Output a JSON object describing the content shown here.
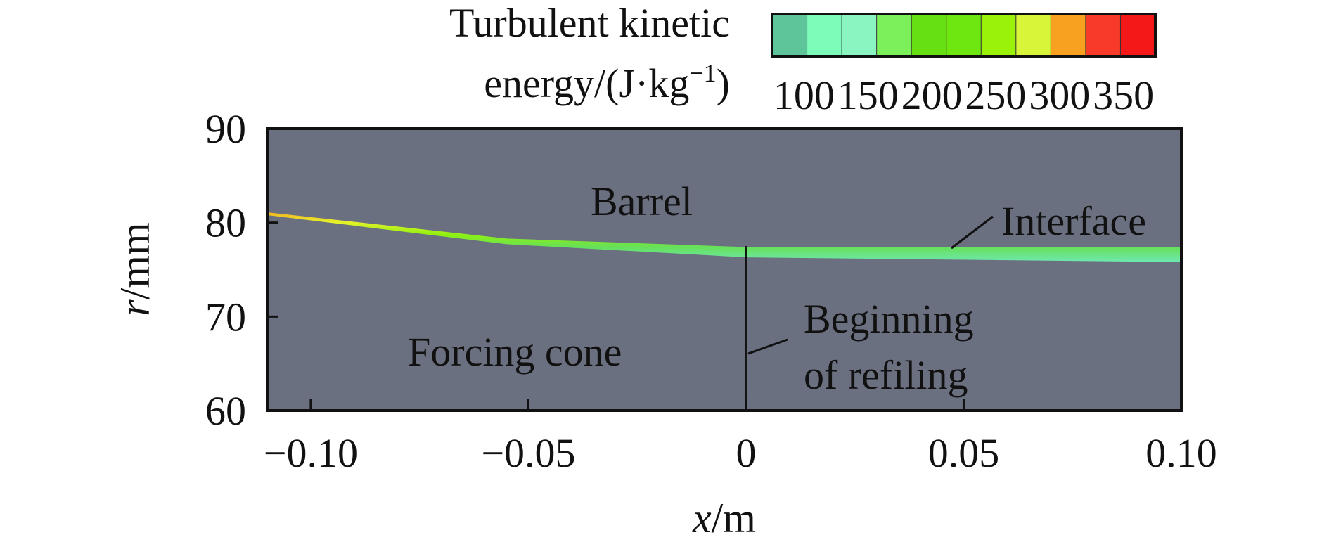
{
  "chart_data": {
    "type": "heatmap",
    "xlabel": {
      "var": "x",
      "unit": "/m"
    },
    "ylabel": {
      "var": "r",
      "unit": "/mm"
    },
    "xlim": [
      -0.11,
      0.1
    ],
    "ylim": [
      60,
      90
    ],
    "x_ticks": [
      -0.1,
      -0.05,
      0,
      0.05,
      0.1
    ],
    "x_tick_labels": [
      "−0.10",
      "−0.05",
      "0",
      "0.05",
      "0.10"
    ],
    "y_ticks": [
      60,
      70,
      80,
      90
    ],
    "y_tick_labels": [
      "60",
      "70",
      "80",
      "90"
    ],
    "colorbar": {
      "title_line1": "Turbulent kinetic",
      "title_line2_prefix": "energy/(J·kg",
      "title_line2_sup": "−1",
      "title_line2_suffix": ")",
      "range": [
        75,
        375
      ],
      "tick_values": [
        100,
        150,
        200,
        250,
        300,
        350
      ],
      "tick_labels": [
        "100",
        "150",
        "200",
        "250",
        "300",
        "350"
      ],
      "colors": [
        "#5ec49a",
        "#7dfbb8",
        "#8af5c0",
        "#7cf05a",
        "#66e012",
        "#6ee610",
        "#9af20a",
        "#d8f53a",
        "#f8a020",
        "#f83a28",
        "#f41818"
      ]
    },
    "background_color": "#6b7081",
    "interface_band": {
      "top_r": [
        {
          "x": -0.11,
          "r": 81.1
        },
        {
          "x": -0.055,
          "r": 78.3
        },
        {
          "x": 0.0,
          "r": 77.4
        },
        {
          "x": 0.1,
          "r": 77.4
        }
      ],
      "bottom_r": [
        {
          "x": -0.11,
          "r": 80.8
        },
        {
          "x": -0.055,
          "r": 77.7
        },
        {
          "x": 0.0,
          "r": 76.3
        },
        {
          "x": 0.1,
          "r": 75.8
        }
      ]
    },
    "divider_x": 0.0,
    "annotations": {
      "barrel": "Barrel",
      "interface": "Interface",
      "forcing_cone": "Forcing cone",
      "beginning_line1": "Beginning",
      "beginning_line2": "of refiling"
    }
  }
}
